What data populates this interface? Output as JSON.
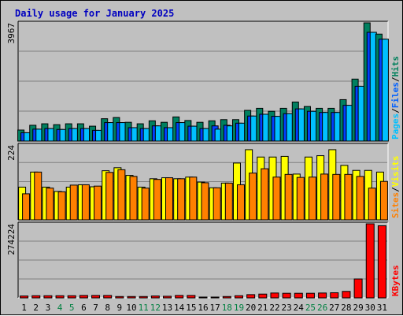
{
  "chart_data": {
    "type": "bar",
    "title": "Daily usage for January 2025",
    "categories": [
      "1",
      "2",
      "3",
      "4",
      "5",
      "6",
      "7",
      "8",
      "9",
      "10",
      "11",
      "12",
      "13",
      "14",
      "15",
      "16",
      "17",
      "18",
      "19",
      "20",
      "21",
      "22",
      "23",
      "24",
      "25",
      "26",
      "27",
      "28",
      "29",
      "30",
      "31"
    ],
    "weekend_days": [
      "4",
      "5",
      "11",
      "12",
      "18",
      "19",
      "25",
      "26"
    ],
    "panels": [
      {
        "id": "hits",
        "ymax": 3967,
        "ymax_label": "3967",
        "legend": [
          {
            "text": "Pages",
            "color": "#00c0ff"
          },
          {
            "text": "/",
            "color": "#000000"
          },
          {
            "text": "Files",
            "color": "#0060ff"
          },
          {
            "text": "/",
            "color": "#000000"
          },
          {
            "text": "Hits",
            "color": "#00805c"
          }
        ],
        "series": [
          {
            "name": "Hits",
            "color": "#008060",
            "values": [
              370,
              530,
              580,
              550,
              580,
              580,
              500,
              750,
              790,
              630,
              580,
              680,
              630,
              810,
              690,
              630,
              680,
              720,
              720,
              1030,
              1100,
              1000,
              1100,
              1310,
              1160,
              1100,
              1100,
              1390,
              2080,
              3967,
              3590
            ]
          },
          {
            "name": "Files",
            "color": "#0040ff",
            "values": [
              280,
              400,
              420,
              390,
              420,
              420,
              360,
              620,
              620,
              450,
              420,
              510,
              450,
              620,
              500,
              420,
              510,
              530,
              600,
              840,
              900,
              830,
              920,
              1080,
              1000,
              960,
              960,
              1200,
              1840,
              3650,
              3420
            ]
          },
          {
            "name": "Pages",
            "color": "#00c0ff",
            "values": [
              280,
              400,
              420,
              390,
              420,
              420,
              360,
              620,
              620,
              450,
              420,
              510,
              450,
              620,
              500,
              420,
              400,
              510,
              600,
              840,
              900,
              830,
              920,
              1080,
              1000,
              960,
              960,
              1200,
              1840,
              3650,
              3420
            ]
          }
        ]
      },
      {
        "id": "visits",
        "ymax": 224,
        "ymax_label": "224",
        "legend": [
          {
            "text": "Sites",
            "color": "#ff8000"
          },
          {
            "text": "/",
            "color": "#000000"
          },
          {
            "text": "Visits",
            "color": "#ffff00"
          }
        ],
        "series": [
          {
            "name": "Visits",
            "color": "#ffff00",
            "values": [
              98,
              143,
              98,
              85,
              98,
              105,
              99,
              147,
              156,
              133,
              98,
              123,
              126,
              123,
              128,
              113,
              96,
              110,
              170,
              210,
              188,
              188,
              190,
              137,
              188,
              192,
              210,
              163,
              148,
              148,
              143
            ]
          },
          {
            "name": "Sites",
            "color": "#ff8000",
            "values": [
              78,
              143,
              95,
              84,
              104,
              105,
              101,
              142,
              150,
              130,
              95,
              121,
              126,
              123,
              128,
              111,
              96,
              110,
              105,
              140,
              153,
              128,
              136,
              127,
              128,
              137,
              136,
              136,
              130,
              95,
              115
            ]
          }
        ]
      },
      {
        "id": "kbytes",
        "ymax": 274224,
        "ymax_label": "274224",
        "legend": [
          {
            "text": "KBytes",
            "color": "#ff0000"
          }
        ],
        "series": [
          {
            "name": "KBytes",
            "color": "#ff0000",
            "values": [
              7000,
              8000,
              8000,
              8000,
              8000,
              9000,
              9000,
              9000,
              5000,
              5000,
              5000,
              7000,
              6000,
              9000,
              9000,
              3000,
              3000,
              5000,
              8000,
              12000,
              14000,
              18000,
              17000,
              17000,
              17000,
              18000,
              19000,
              24000,
              70000,
              274224,
              267000
            ]
          }
        ]
      }
    ]
  }
}
